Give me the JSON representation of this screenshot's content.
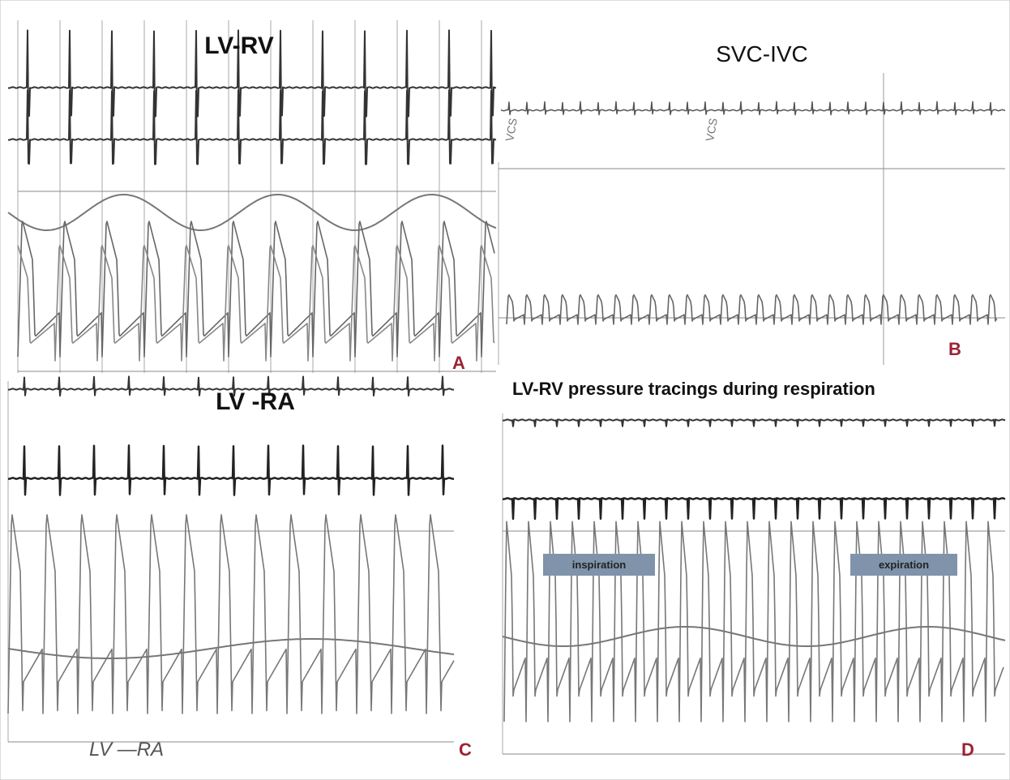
{
  "panels": [
    {
      "title": "LV-RV",
      "letter": "A"
    },
    {
      "title": "SVC-IVC",
      "letter": "B",
      "annotations": [
        "VCS",
        "VCS"
      ]
    },
    {
      "title": "LV -RA",
      "letter": "C",
      "handwriting": "LV —RA"
    },
    {
      "title": "LV-RV pressure tracings during respiration",
      "letter": "D",
      "labels": [
        "inspiration",
        "expiration"
      ]
    }
  ]
}
